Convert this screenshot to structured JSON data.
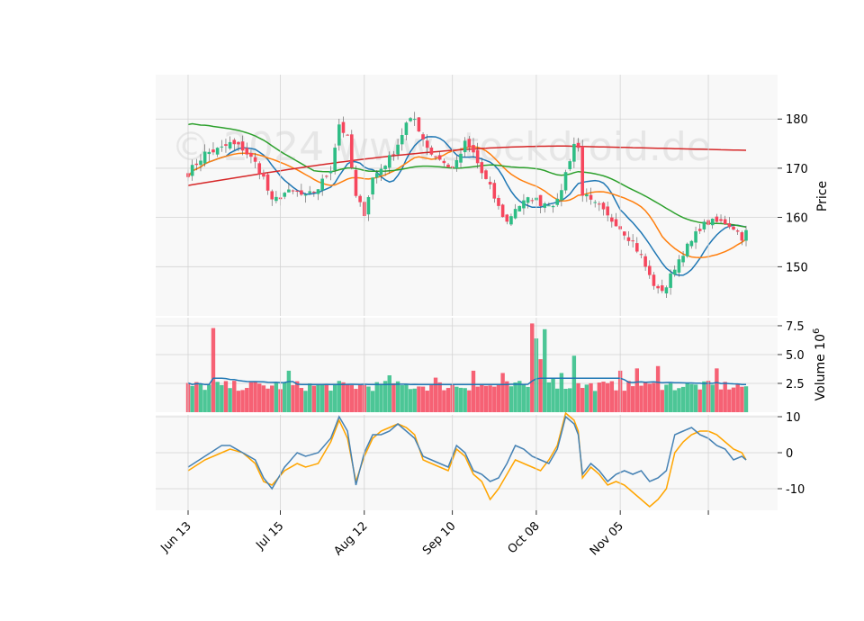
{
  "chart_data": {
    "type": "candlestick",
    "watermark": "© 2024 www.stockdroid.de",
    "x_tick_labels": [
      "Jun 13",
      "Jul 15",
      "Aug 12",
      "Sep 10",
      "Oct 08",
      "Nov 05"
    ],
    "colors": {
      "up": "#2ebd85",
      "down": "#f6465d",
      "ma_short": "#1f77b4",
      "ma_mid": "#ff7f0e",
      "ma_long": "#2ca02c",
      "ma_200": "#d62728",
      "osc_main": "#4682b4",
      "osc_signal": "#ffa500",
      "grid": "#d3d3d3",
      "panel_bg": "#f8f8f8"
    },
    "price_panel": {
      "ylabel": "Price",
      "ylim": [
        140,
        189
      ],
      "yticks": [
        150,
        160,
        170,
        180
      ]
    },
    "volume_panel": {
      "ylabel": "Volume  10",
      "ylabel_exponent": "6",
      "ylim": [
        0,
        8.2
      ],
      "yticks": [
        2.5,
        5.0,
        7.5
      ],
      "ytick_labels": [
        "2.5",
        "5.0",
        "7.5"
      ]
    },
    "oscillator_panel": {
      "ylim": [
        -16,
        10.5
      ],
      "yticks": [
        -10,
        0,
        10
      ]
    },
    "close_anchors": [
      [
        0,
        169
      ],
      [
        4,
        173
      ],
      [
        8,
        174
      ],
      [
        10,
        175
      ],
      [
        13,
        174
      ],
      [
        16,
        171
      ],
      [
        18,
        168
      ],
      [
        20,
        163
      ],
      [
        23,
        165
      ],
      [
        26,
        165
      ],
      [
        28,
        164
      ],
      [
        31,
        166
      ],
      [
        34,
        170
      ],
      [
        36,
        179
      ],
      [
        38,
        176
      ],
      [
        40,
        164
      ],
      [
        42,
        161
      ],
      [
        44,
        168
      ],
      [
        46,
        170
      ],
      [
        48,
        172
      ],
      [
        50,
        175
      ],
      [
        52,
        179
      ],
      [
        54,
        180
      ],
      [
        56,
        176
      ],
      [
        58,
        173
      ],
      [
        60,
        172
      ],
      [
        62,
        170
      ],
      [
        64,
        171
      ],
      [
        66,
        175
      ],
      [
        68,
        173
      ],
      [
        70,
        169
      ],
      [
        72,
        166
      ],
      [
        74,
        162
      ],
      [
        76,
        159
      ],
      [
        78,
        162
      ],
      [
        80,
        163
      ],
      [
        82,
        164
      ],
      [
        84,
        163
      ],
      [
        86,
        163
      ],
      [
        88,
        163
      ],
      [
        90,
        169
      ],
      [
        92,
        175
      ],
      [
        93,
        174
      ],
      [
        94,
        165
      ],
      [
        96,
        163
      ],
      [
        98,
        162
      ],
      [
        100,
        160
      ],
      [
        102,
        159
      ],
      [
        104,
        157
      ],
      [
        106,
        155
      ],
      [
        108,
        152
      ],
      [
        110,
        148
      ],
      [
        112,
        145
      ],
      [
        114,
        146
      ],
      [
        116,
        150
      ],
      [
        118,
        153
      ],
      [
        120,
        155
      ],
      [
        122,
        158
      ],
      [
        124,
        159
      ],
      [
        126,
        159
      ],
      [
        128,
        159
      ],
      [
        130,
        158
      ],
      [
        132,
        156
      ],
      [
        133,
        157
      ]
    ],
    "ohlc_sample": [
      {
        "date": "Jun 13",
        "o": 170,
        "h": 172,
        "l": 168,
        "c": 169
      },
      {
        "date": "Jul 15",
        "o": 165,
        "h": 167,
        "l": 163,
        "c": 165
      },
      {
        "date": "Aug 12",
        "o": 178,
        "h": 181,
        "l": 176,
        "c": 180
      },
      {
        "date": "Sep 10",
        "o": 162,
        "h": 164,
        "l": 160,
        "c": 163
      },
      {
        "date": "Oct 08",
        "o": 175,
        "h": 178,
        "l": 163,
        "c": 165
      },
      {
        "date": "Nov 05",
        "o": 146,
        "h": 150,
        "l": 145,
        "c": 149
      }
    ],
    "volume_events": [
      [
        6,
        7.3
      ],
      [
        24,
        3.6
      ],
      [
        48,
        3.2
      ],
      [
        59,
        3.0
      ],
      [
        68,
        3.6
      ],
      [
        75,
        3.6
      ],
      [
        75,
        3.4
      ],
      [
        82,
        7.7
      ],
      [
        83,
        6.4
      ],
      [
        84,
        4.6
      ],
      [
        85,
        7.2
      ],
      [
        87,
        3.0
      ],
      [
        89,
        3.4
      ],
      [
        92,
        4.9
      ],
      [
        103,
        3.6
      ],
      [
        107,
        3.8
      ],
      [
        112,
        4.0
      ],
      [
        126,
        3.8
      ]
    ],
    "volume_base": 2.1,
    "volume_ma": 2.6,
    "oscillator_series": {
      "main": [
        [
          0,
          -4
        ],
        [
          4,
          -1
        ],
        [
          8,
          2
        ],
        [
          10,
          2
        ],
        [
          13,
          0
        ],
        [
          16,
          -2
        ],
        [
          18,
          -7
        ],
        [
          20,
          -10
        ],
        [
          23,
          -4
        ],
        [
          26,
          0
        ],
        [
          28,
          -1
        ],
        [
          31,
          0
        ],
        [
          34,
          4
        ],
        [
          36,
          10
        ],
        [
          38,
          6
        ],
        [
          40,
          -9
        ],
        [
          42,
          0
        ],
        [
          44,
          5
        ],
        [
          46,
          5
        ],
        [
          48,
          6
        ],
        [
          50,
          8
        ],
        [
          52,
          6
        ],
        [
          54,
          4
        ],
        [
          56,
          -1
        ],
        [
          58,
          -2
        ],
        [
          60,
          -3
        ],
        [
          62,
          -4
        ],
        [
          64,
          2
        ],
        [
          66,
          0
        ],
        [
          68,
          -5
        ],
        [
          70,
          -6
        ],
        [
          72,
          -8
        ],
        [
          74,
          -7
        ],
        [
          76,
          -3
        ],
        [
          78,
          2
        ],
        [
          80,
          1
        ],
        [
          82,
          -1
        ],
        [
          84,
          -2
        ],
        [
          86,
          -3
        ],
        [
          88,
          1
        ],
        [
          90,
          10
        ],
        [
          92,
          8
        ],
        [
          93,
          5
        ],
        [
          94,
          -6
        ],
        [
          96,
          -3
        ],
        [
          98,
          -5
        ],
        [
          100,
          -8
        ],
        [
          102,
          -6
        ],
        [
          104,
          -5
        ],
        [
          106,
          -6
        ],
        [
          108,
          -5
        ],
        [
          110,
          -8
        ],
        [
          112,
          -7
        ],
        [
          114,
          -5
        ],
        [
          116,
          5
        ],
        [
          118,
          6
        ],
        [
          120,
          7
        ],
        [
          122,
          5
        ],
        [
          124,
          4
        ],
        [
          126,
          2
        ],
        [
          128,
          1
        ],
        [
          130,
          -2
        ],
        [
          132,
          -1
        ],
        [
          133,
          -2
        ]
      ],
      "signal": [
        [
          0,
          -5
        ],
        [
          4,
          -2
        ],
        [
          8,
          0
        ],
        [
          10,
          1
        ],
        [
          13,
          0
        ],
        [
          16,
          -3
        ],
        [
          18,
          -8
        ],
        [
          20,
          -9
        ],
        [
          23,
          -5
        ],
        [
          26,
          -3
        ],
        [
          28,
          -4
        ],
        [
          31,
          -3
        ],
        [
          34,
          3
        ],
        [
          36,
          9
        ],
        [
          38,
          4
        ],
        [
          40,
          -8
        ],
        [
          42,
          -1
        ],
        [
          44,
          4
        ],
        [
          46,
          6
        ],
        [
          48,
          7
        ],
        [
          50,
          8
        ],
        [
          52,
          7
        ],
        [
          54,
          5
        ],
        [
          56,
          -2
        ],
        [
          58,
          -3
        ],
        [
          60,
          -4
        ],
        [
          62,
          -5
        ],
        [
          64,
          1
        ],
        [
          66,
          -1
        ],
        [
          68,
          -6
        ],
        [
          70,
          -8
        ],
        [
          72,
          -13
        ],
        [
          74,
          -10
        ],
        [
          76,
          -6
        ],
        [
          78,
          -2
        ],
        [
          80,
          -3
        ],
        [
          82,
          -4
        ],
        [
          84,
          -5
        ],
        [
          86,
          -2
        ],
        [
          88,
          2
        ],
        [
          90,
          11
        ],
        [
          92,
          9
        ],
        [
          93,
          6
        ],
        [
          94,
          -7
        ],
        [
          96,
          -4
        ],
        [
          98,
          -6
        ],
        [
          100,
          -9
        ],
        [
          102,
          -8
        ],
        [
          104,
          -9
        ],
        [
          106,
          -11
        ],
        [
          108,
          -13
        ],
        [
          110,
          -15
        ],
        [
          112,
          -13
        ],
        [
          114,
          -10
        ],
        [
          116,
          0
        ],
        [
          118,
          3
        ],
        [
          120,
          5
        ],
        [
          122,
          6
        ],
        [
          124,
          6
        ],
        [
          126,
          5
        ],
        [
          128,
          3
        ],
        [
          130,
          1
        ],
        [
          132,
          0
        ],
        [
          133,
          -2
        ]
      ]
    }
  }
}
